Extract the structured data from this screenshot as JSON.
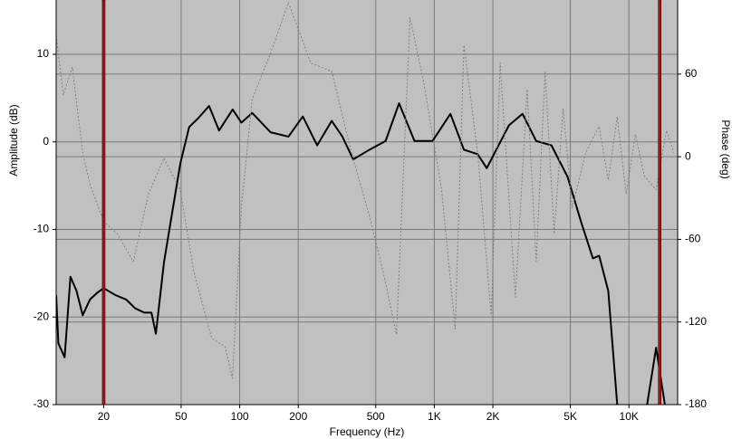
{
  "chart_data": {
    "type": "line",
    "x_label": "Frequency (Hz)",
    "y_label": "Amplitude (dB)",
    "y2_label": "Phase (deg)",
    "log_x": true,
    "grid": true,
    "xlim": [
      11.4,
      17800
    ],
    "ylim": [
      -30,
      16.2
    ],
    "y2lim": [
      -180,
      113.8
    ],
    "xticks": [
      20,
      50,
      100,
      200,
      500,
      {
        "value": 1000,
        "label": "1K"
      },
      {
        "value": 2000,
        "label": "2K"
      },
      {
        "value": 5000,
        "label": "5K"
      },
      {
        "value": 10000,
        "label": "10K"
      }
    ],
    "yticks": [
      -30,
      -20,
      -10,
      0,
      10
    ],
    "y2ticks": [
      -180,
      -120,
      -60,
      0,
      60
    ],
    "markers": [
      20,
      14400
    ],
    "marker_color": "#b01010",
    "series": [
      {
        "color": "#000000",
        "x": [
          11.4,
          11.7,
          12.6,
          13.5,
          14.5,
          15.6,
          17,
          18.6,
          20,
          23,
          26.1,
          29,
          32.3,
          35.2,
          37.1,
          40.8,
          44.5,
          49.5,
          55,
          61.2,
          69.6,
          78.3,
          92,
          102,
          116,
          144,
          178,
          211,
          250,
          297,
          337,
          383,
          464,
          562,
          659,
          791,
          979,
          1210,
          1420,
          1670,
          1860,
          2420,
          2840,
          3340,
          4000,
          4840,
          5690,
          6530,
          7030,
          7830,
          8710,
          10000,
          12400,
          13800,
          15300
        ],
        "values": [
          -17.5,
          -23,
          -24.6,
          -15.4,
          -17,
          -19.8,
          -18,
          -17.2,
          -16.7,
          -17.5,
          -18,
          -19,
          -19.5,
          -19.5,
          -21.9,
          -13.8,
          -8.7,
          -2.5,
          1.7,
          2.7,
          4.1,
          1.3,
          3.7,
          2.2,
          3.3,
          1.1,
          0.6,
          2.9,
          -0.4,
          2.4,
          0.6,
          -2,
          -0.9,
          0.1,
          4.4,
          0.1,
          0.1,
          3.2,
          -0.9,
          -1.4,
          -3,
          1.9,
          3.2,
          0.1,
          -0.4,
          -4,
          -9.2,
          -13.3,
          -13,
          -17,
          -30,
          null,
          -30,
          -23.5,
          -30
        ]
      },
      {
        "color": "#808080",
        "axis": "y2",
        "dashed": true,
        "x": [
          11.4,
          12.4,
          13.8,
          15.6,
          17,
          20,
          23.5,
          28.4,
          34,
          40.8,
          49.5,
          58,
          71.8,
          84.3,
          91.8,
          102,
          116,
          144,
          178,
          232,
          297,
          375,
          464,
          545,
          639,
          750,
          880,
          1090,
          1280,
          1420,
          1670,
          1960,
          2180,
          2610,
          3000,
          3340,
          3710,
          4130,
          4590,
          5110,
          6000,
          7030,
          7830,
          8710,
          9680,
          10800,
          12000,
          13800,
          15600,
          17000
        ],
        "values": [
          88,
          45,
          65,
          3,
          -20,
          -47,
          -56,
          -76,
          -27,
          -1,
          -24,
          -83,
          -132,
          -138,
          -161,
          -37,
          42,
          75,
          112,
          68,
          62,
          3,
          -43,
          -83,
          -129,
          101,
          55,
          -24,
          -125,
          81,
          3,
          -115,
          68,
          -102,
          49,
          -76,
          62,
          -56,
          35,
          -37,
          3,
          22,
          -17,
          29,
          -27,
          16,
          -14,
          -24,
          19,
          3
        ]
      }
    ]
  }
}
